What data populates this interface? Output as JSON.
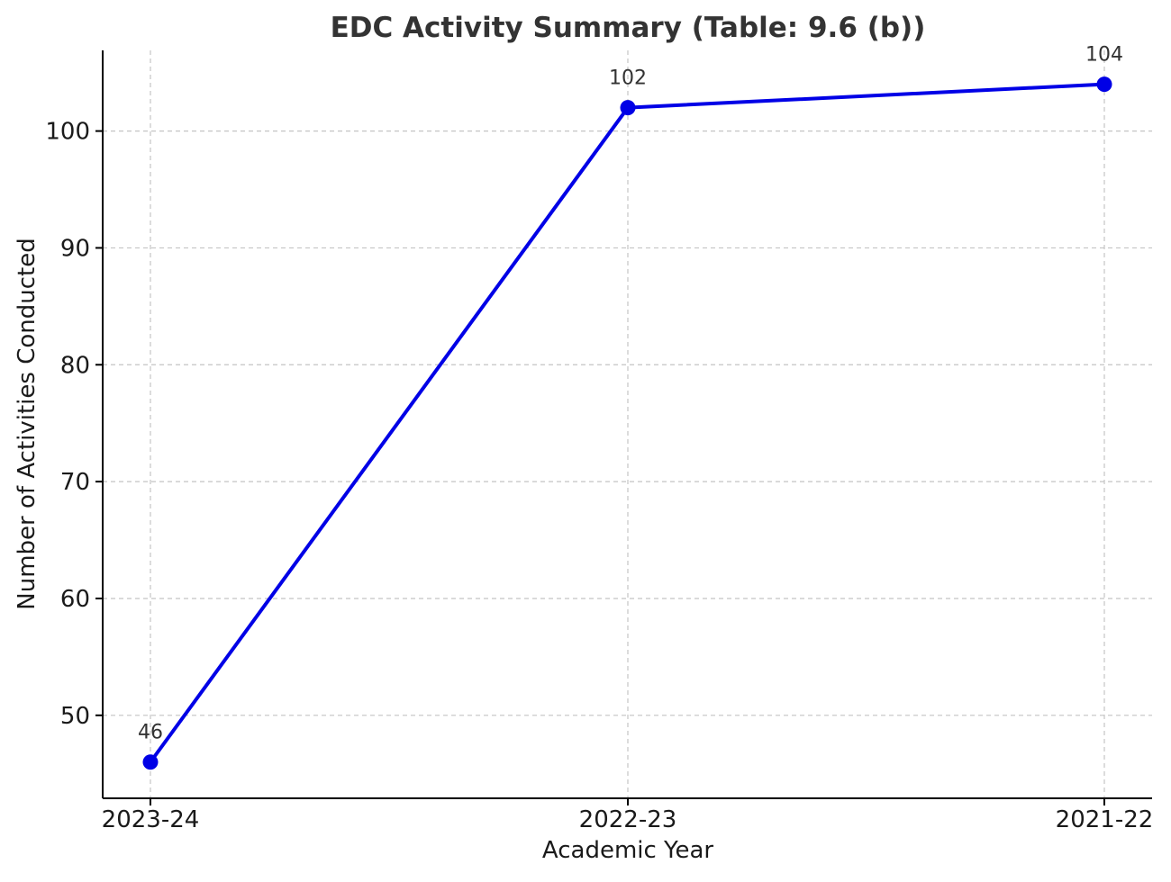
{
  "chart_data": {
    "type": "line",
    "title": "EDC Activity Summary (Table: 9.6 (b))",
    "xlabel": "Academic Year",
    "ylabel": "Number of Activities Conducted",
    "categories": [
      "2023-24",
      "2022-23",
      "2021-22"
    ],
    "series": [
      {
        "values": [
          46,
          102,
          104
        ],
        "color": "#0000e6"
      }
    ],
    "data_labels": [
      "46",
      "102",
      "104"
    ],
    "yticks": [
      50,
      60,
      70,
      80,
      90,
      100
    ],
    "ylim": [
      42.9,
      106.9
    ],
    "grid": true,
    "marker": "circle"
  }
}
